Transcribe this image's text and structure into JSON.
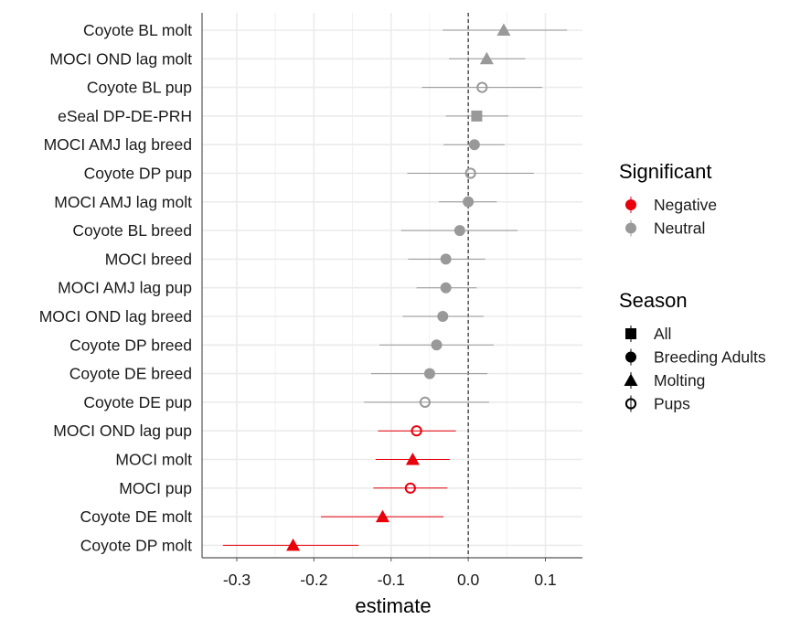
{
  "chart_data": {
    "type": "scatter",
    "subtype": "forest-plot",
    "title": "",
    "xlabel": "estimate",
    "ylabel": "",
    "xlim": [
      -0.345,
      0.148
    ],
    "x_ticks": [
      -0.3,
      -0.2,
      -0.1,
      0.0,
      0.1
    ],
    "x_tick_labels": [
      "-0.3",
      "-0.2",
      "-0.1",
      "0.0",
      "0.1"
    ],
    "reference_line": {
      "x": 0,
      "style": "dashed"
    },
    "grid": true,
    "colors": {
      "Negative": "#e8000b",
      "Neutral": "#999999"
    },
    "legend_placement": "right",
    "points": [
      {
        "label": "Coyote BL molt",
        "estimate": 0.046,
        "lower": -0.033,
        "upper": 0.128,
        "season": "Molting",
        "significant": "Neutral"
      },
      {
        "label": "MOCI OND lag molt",
        "estimate": 0.024,
        "lower": -0.025,
        "upper": 0.074,
        "season": "Molting",
        "significant": "Neutral"
      },
      {
        "label": "Coyote BL pup",
        "estimate": 0.018,
        "lower": -0.06,
        "upper": 0.096,
        "season": "Pups",
        "significant": "Neutral"
      },
      {
        "label": "eSeal DP-DE-PRH",
        "estimate": 0.011,
        "lower": -0.029,
        "upper": 0.052,
        "season": "All",
        "significant": "Neutral"
      },
      {
        "label": "MOCI AMJ lag breed",
        "estimate": 0.008,
        "lower": -0.032,
        "upper": 0.047,
        "season": "Breeding Adults",
        "significant": "Neutral"
      },
      {
        "label": "Coyote DP pup",
        "estimate": 0.003,
        "lower": -0.079,
        "upper": 0.085,
        "season": "Pups",
        "significant": "Neutral"
      },
      {
        "label": "MOCI AMJ lag molt",
        "estimate": 0.0,
        "lower": -0.038,
        "upper": 0.037,
        "season": "Breeding Adults",
        "significant": "Neutral"
      },
      {
        "label": "Coyote BL breed",
        "estimate": -0.011,
        "lower": -0.087,
        "upper": 0.064,
        "season": "Breeding Adults",
        "significant": "Neutral"
      },
      {
        "label": "MOCI breed",
        "estimate": -0.029,
        "lower": -0.078,
        "upper": 0.022,
        "season": "Breeding Adults",
        "significant": "Neutral"
      },
      {
        "label": "MOCI AMJ lag pup",
        "estimate": -0.029,
        "lower": -0.067,
        "upper": 0.011,
        "season": "Breeding Adults",
        "significant": "Neutral"
      },
      {
        "label": "MOCI OND lag breed",
        "estimate": -0.033,
        "lower": -0.085,
        "upper": 0.02,
        "season": "Breeding Adults",
        "significant": "Neutral"
      },
      {
        "label": "Coyote DP breed",
        "estimate": -0.041,
        "lower": -0.115,
        "upper": 0.033,
        "season": "Breeding Adults",
        "significant": "Neutral"
      },
      {
        "label": "Coyote DE breed",
        "estimate": -0.05,
        "lower": -0.126,
        "upper": 0.025,
        "season": "Breeding Adults",
        "significant": "Neutral"
      },
      {
        "label": "Coyote DE pup",
        "estimate": -0.056,
        "lower": -0.135,
        "upper": 0.027,
        "season": "Pups",
        "significant": "Neutral"
      },
      {
        "label": "MOCI OND lag pup",
        "estimate": -0.067,
        "lower": -0.117,
        "upper": -0.016,
        "season": "Pups",
        "significant": "Negative"
      },
      {
        "label": "MOCI molt",
        "estimate": -0.072,
        "lower": -0.12,
        "upper": -0.024,
        "season": "Molting",
        "significant": "Negative"
      },
      {
        "label": "MOCI pup",
        "estimate": -0.075,
        "lower": -0.123,
        "upper": -0.027,
        "season": "Pups",
        "significant": "Negative"
      },
      {
        "label": "Coyote DE molt",
        "estimate": -0.111,
        "lower": -0.191,
        "upper": -0.032,
        "season": "Molting",
        "significant": "Negative"
      },
      {
        "label": "Coyote DP molt",
        "estimate": -0.227,
        "lower": -0.318,
        "upper": -0.142,
        "season": "Molting",
        "significant": "Negative"
      }
    ],
    "legends": [
      {
        "title": "Significant",
        "entries": [
          {
            "label": "Negative",
            "shape": "circle-filled",
            "color": "#e8000b"
          },
          {
            "label": "Neutral",
            "shape": "circle-filled",
            "color": "#999999"
          }
        ]
      },
      {
        "title": "Season",
        "entries": [
          {
            "label": "All",
            "shape": "square",
            "color": "#000000"
          },
          {
            "label": "Breeding Adults",
            "shape": "circle-filled",
            "color": "#000000"
          },
          {
            "label": "Molting",
            "shape": "triangle",
            "color": "#000000"
          },
          {
            "label": "Pups",
            "shape": "circle-open",
            "color": "#000000"
          }
        ]
      }
    ]
  }
}
